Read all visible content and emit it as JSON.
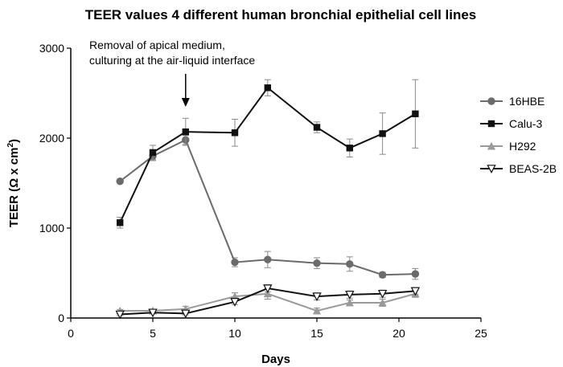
{
  "chart_data": {
    "type": "line",
    "title": "TEER values 4 different human bronchial epithelial cell lines",
    "xlabel": "Days",
    "ylabel": "TEER (Ω x cm",
    "ylabel_sup": "2",
    "ylabel_suffix": ")",
    "xlim": [
      0,
      25
    ],
    "ylim": [
      0,
      3000
    ],
    "xticks": [
      "0",
      "5",
      "10",
      "15",
      "20",
      "25"
    ],
    "yticks": [
      "0",
      "1000",
      "2000",
      "3000"
    ],
    "grid": false,
    "legend_position": "right",
    "annotation": {
      "line1": "Removal of apical medium,",
      "line2": "culturing at the air-liquid interface",
      "arrow_x": 7
    },
    "x": [
      3,
      5,
      7,
      10,
      12,
      15,
      17,
      19,
      21
    ],
    "series": [
      {
        "name": "16HBE",
        "marker": "circle",
        "color": "#6b6b6b",
        "values": [
          1520,
          1800,
          1980,
          620,
          650,
          610,
          600,
          480,
          490
        ],
        "errors": [
          0,
          50,
          50,
          50,
          90,
          60,
          80,
          30,
          60
        ]
      },
      {
        "name": "Calu-3",
        "marker": "square",
        "color": "#111111",
        "values": [
          1060,
          1840,
          2070,
          2060,
          2560,
          2120,
          1890,
          2050,
          2270
        ],
        "errors": [
          60,
          80,
          150,
          150,
          90,
          60,
          100,
          230,
          380
        ]
      },
      {
        "name": "H292",
        "marker": "triangle",
        "color": "#9a9a9a",
        "values": [
          80,
          80,
          100,
          240,
          270,
          80,
          170,
          170,
          270
        ],
        "errors": [
          15,
          15,
          30,
          40,
          60,
          30,
          30,
          40,
          40
        ]
      },
      {
        "name": "BEAS-2B",
        "marker": "triangle-down",
        "color": "#111111",
        "values": [
          40,
          60,
          50,
          180,
          330,
          240,
          260,
          270,
          300
        ],
        "errors": [
          15,
          15,
          15,
          30,
          40,
          40,
          40,
          40,
          40
        ]
      }
    ]
  }
}
